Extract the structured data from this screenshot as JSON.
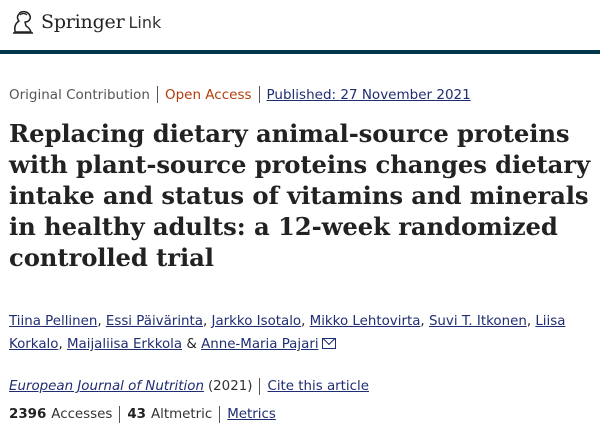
{
  "header": {
    "brand": "Springer",
    "brand_suffix": "Link",
    "logo_icon": "springer-horse-icon"
  },
  "meta": {
    "article_type": "Original Contribution",
    "access": "Open Access",
    "published": "Published: 27 November 2021"
  },
  "article": {
    "title": "Replacing dietary animal-source proteins with plant-source proteins changes dietary intake and status of vitamins and minerals in healthy adults: a 12-week randomized controlled trial"
  },
  "authors": [
    "Tiina Pellinen",
    "Essi Päivärinta",
    "Jarkko Isotalo",
    "Mikko Lehtovirta",
    "Suvi T. Itkonen",
    "Liisa Korkalo",
    "Maijaliisa Erkkola",
    "Anne-Maria Pajari"
  ],
  "author_separator": ", ",
  "author_last_separator": " & ",
  "corresponding_icon": "mail-icon",
  "journal": {
    "name": "European Journal of Nutrition",
    "year": "(2021)",
    "cite_label": "Cite this article"
  },
  "metrics": {
    "accesses_count": "2396",
    "accesses_label": "Accesses",
    "altmetric_count": "43",
    "altmetric_label": "Altmetric",
    "metrics_link": "Metrics"
  },
  "colors": {
    "header_rule": "#02374b",
    "link": "#1f2d72",
    "open_access": "#b33e0b"
  }
}
